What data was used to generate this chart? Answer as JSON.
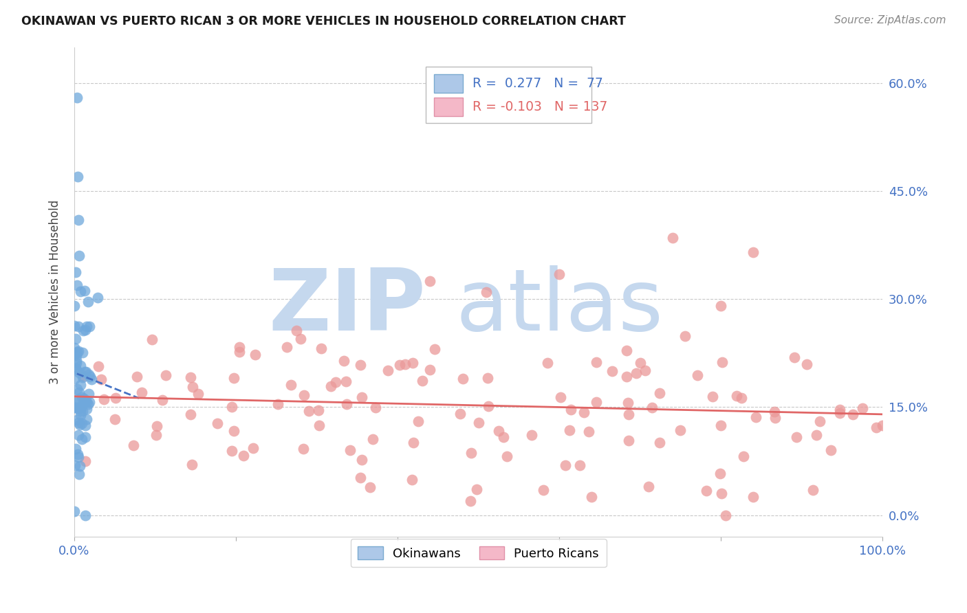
{
  "title": "OKINAWAN VS PUERTO RICAN 3 OR MORE VEHICLES IN HOUSEHOLD CORRELATION CHART",
  "source": "Source: ZipAtlas.com",
  "ylabel": "3 or more Vehicles in Household",
  "ytick_values": [
    0.0,
    15.0,
    30.0,
    45.0,
    60.0
  ],
  "xlim": [
    0.0,
    100.0
  ],
  "ylim": [
    -3.0,
    65.0
  ],
  "okinawan_R": 0.277,
  "okinawan_N": 77,
  "puerto_rican_R": -0.103,
  "puerto_rican_N": 137,
  "okinawan_color": "#6fa8dc",
  "puerto_rican_color": "#ea9999",
  "okinawan_line_color": "#4472c4",
  "puerto_rican_line_color": "#e06666",
  "tick_color": "#4472c4",
  "grid_color": "#c8c8c8",
  "watermark_zip_color": "#c5d8ee",
  "watermark_atlas_color": "#c5d8ee",
  "background_color": "#ffffff"
}
